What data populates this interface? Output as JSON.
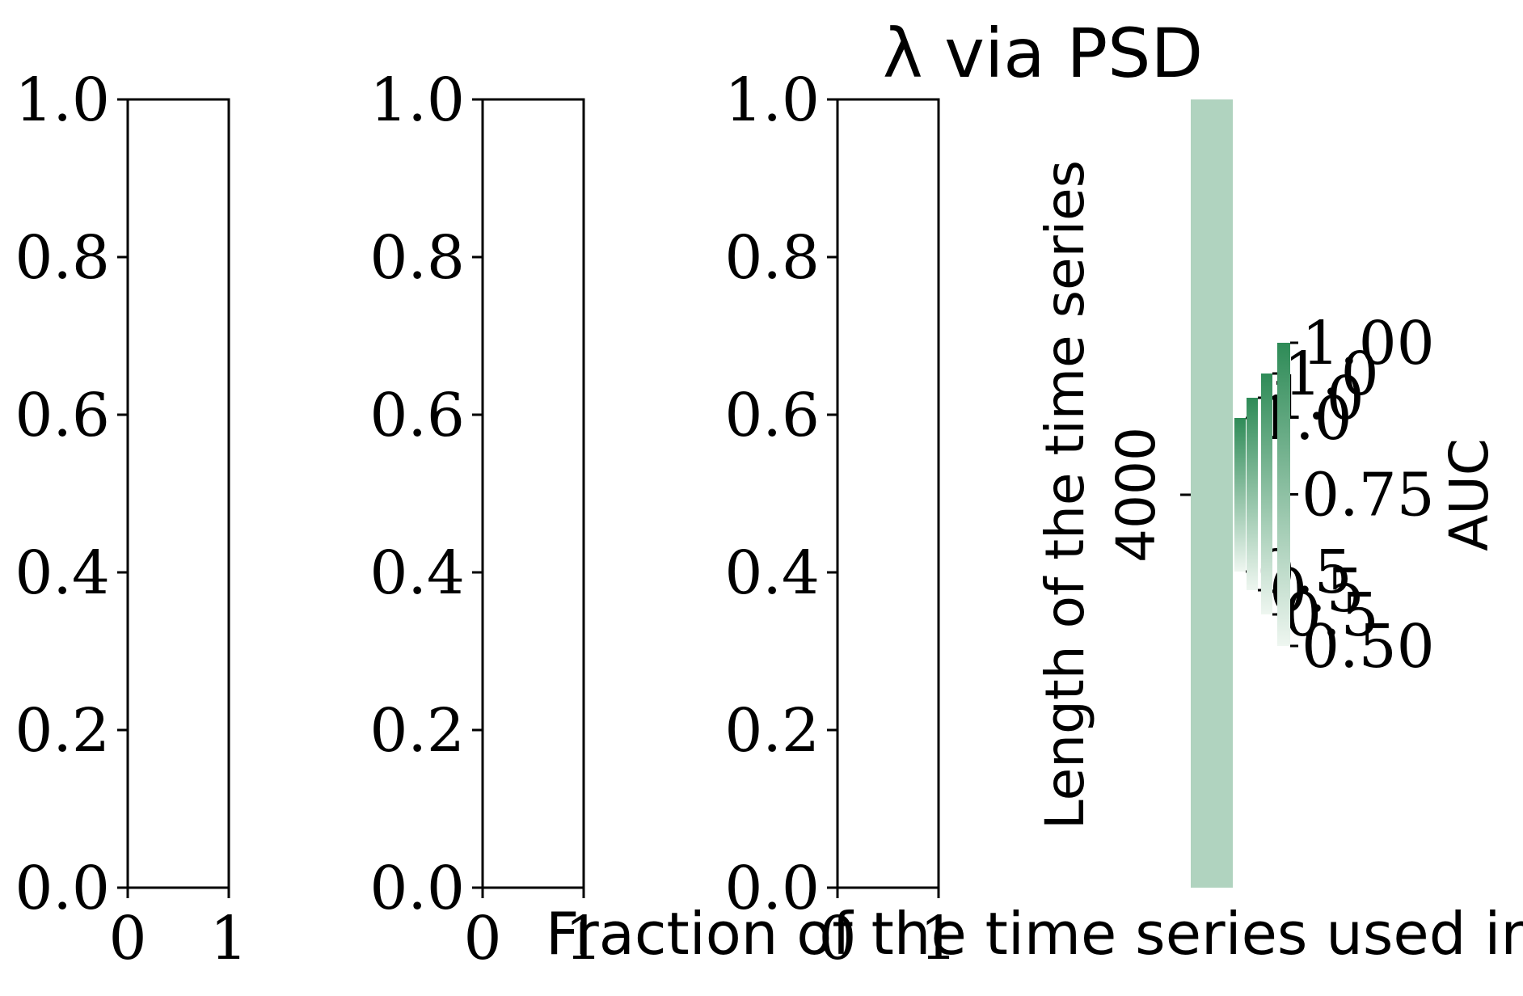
{
  "chart_data": [
    {
      "type": "line",
      "panel": "left-1",
      "xlim": [
        0,
        1
      ],
      "ylim": [
        0.0,
        1.0
      ],
      "xticks": [
        "0",
        "1"
      ],
      "yticks": [
        "0.0",
        "0.2",
        "0.4",
        "0.6",
        "0.8",
        "1.0"
      ],
      "series": []
    },
    {
      "type": "line",
      "panel": "left-2",
      "xlim": [
        0,
        1
      ],
      "ylim": [
        0.0,
        1.0
      ],
      "xticks": [
        "0",
        "1"
      ],
      "yticks": [
        "0.0",
        "0.2",
        "0.4",
        "0.6",
        "0.8",
        "1.0"
      ],
      "series": []
    },
    {
      "type": "line",
      "panel": "left-3",
      "xlim": [
        0,
        1
      ],
      "ylim": [
        0.0,
        1.0
      ],
      "xticks": [
        "0",
        "1"
      ],
      "yticks": [
        "0.0",
        "0.2",
        "0.4",
        "0.6",
        "0.8",
        "1.0"
      ],
      "series": []
    },
    {
      "type": "heatmap",
      "title": "λ via PSD",
      "ylabel": "Length of the time series",
      "yticks": [
        "4000"
      ],
      "xlabel": "Fraction of the time series used in est",
      "cell_color": "#b0d3bf",
      "colorbars": [
        {
          "ticks": [
            "0.5",
            "1.0"
          ],
          "range": [
            0.5,
            1.0
          ]
        },
        {
          "ticks": [
            "0.5",
            "1.0"
          ],
          "range": [
            0.5,
            1.0
          ]
        },
        {
          "ticks": [
            "0.5",
            "1.0"
          ],
          "range": [
            0.5,
            1.0
          ]
        },
        {
          "ticks": [
            "0.50",
            "0.75",
            "1.00"
          ],
          "range": [
            0.5,
            1.0
          ],
          "label": "AUC"
        }
      ],
      "colormap": [
        "#eef6f0",
        "#2e8b57"
      ]
    }
  ]
}
